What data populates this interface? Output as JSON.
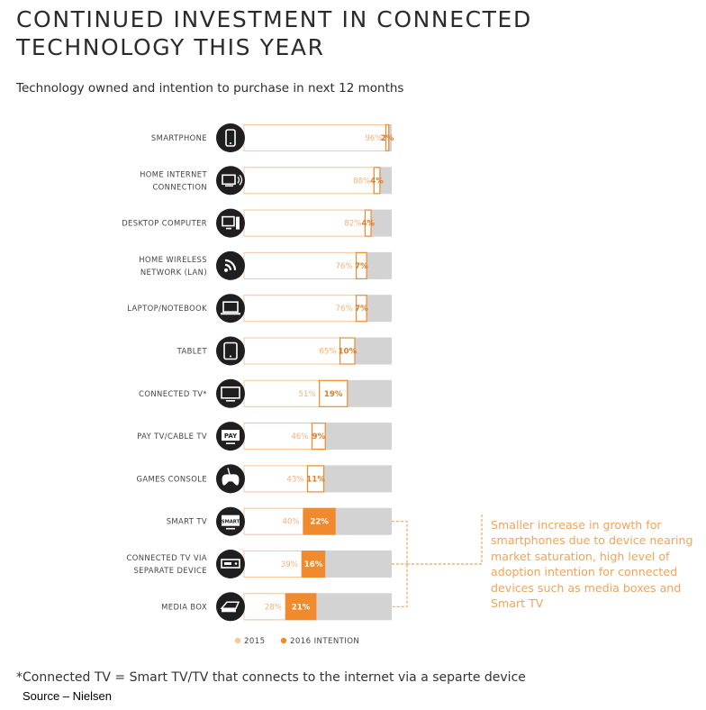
{
  "title": "CONTINUED INVESTMENT IN CONNECTED TECHNOLOGY THIS YEAR",
  "subtitle": "Technology owned and intention to purchase in next 12 months",
  "footnote": "*Connected TV = Smart TV/TV that connects to the internet via a separte device",
  "source": "Source – Nielsen",
  "callout": "Smaller increase in growth for smartphones due to device nearing market saturation, high level of adoption intention for connected devices such as media boxes and Smart TV",
  "colors": {
    "owned_2015": "#fce7d4",
    "owned_2015_border": "#f5c7a0",
    "intention_2016": "#f08a2c",
    "remaining": "#d3d3d3",
    "icon_circle": "#1f1f1f",
    "callout": "#f0a45c"
  },
  "chart_data": {
    "type": "bar",
    "orientation": "horizontal",
    "stacked": true,
    "xlim": [
      0,
      100
    ],
    "unit": "%",
    "legend_position": "bottom",
    "legend": [
      "2015",
      "2016 INTENTION"
    ],
    "categories": [
      {
        "label": [
          "SMARTPHONE"
        ],
        "icon": "smartphone-icon"
      },
      {
        "label": [
          "HOME INTERNET",
          "CONNECTION"
        ],
        "icon": "router-icon"
      },
      {
        "label": [
          "DESKTOP COMPUTER"
        ],
        "icon": "desktop-icon"
      },
      {
        "label": [
          "HOME WIRELESS",
          "NETWORK (LAN)"
        ],
        "icon": "wifi-icon"
      },
      {
        "label": [
          "LAPTOP/NOTEBOOK"
        ],
        "icon": "laptop-icon"
      },
      {
        "label": [
          "TABLET"
        ],
        "icon": "tablet-icon"
      },
      {
        "label": [
          "CONNECTED TV*"
        ],
        "icon": "tv-icon"
      },
      {
        "label": [
          "PAY TV/CABLE TV"
        ],
        "icon": "paytv-icon",
        "icon_text": "PAY"
      },
      {
        "label": [
          "GAMES CONSOLE"
        ],
        "icon": "gamepad-icon"
      },
      {
        "label": [
          "SMART TV"
        ],
        "icon": "smart-tv-icon",
        "icon_text": "SMART"
      },
      {
        "label": [
          "CONNECTED TV VIA",
          "SEPARATE DEVICE"
        ],
        "icon": "set-top-box-icon"
      },
      {
        "label": [
          "MEDIA BOX"
        ],
        "icon": "media-box-icon"
      }
    ],
    "series": [
      {
        "name": "2015",
        "values": [
          96,
          88,
          82,
          76,
          76,
          65,
          51,
          46,
          43,
          40,
          39,
          28
        ]
      },
      {
        "name": "2016 INTENTION",
        "values": [
          2,
          4,
          4,
          7,
          7,
          10,
          19,
          9,
          11,
          22,
          16,
          21
        ]
      }
    ],
    "highlighted_2016": [
      false,
      false,
      false,
      false,
      false,
      false,
      false,
      false,
      false,
      true,
      true,
      true
    ],
    "callout_bracket_rows": [
      9,
      10,
      11
    ]
  }
}
